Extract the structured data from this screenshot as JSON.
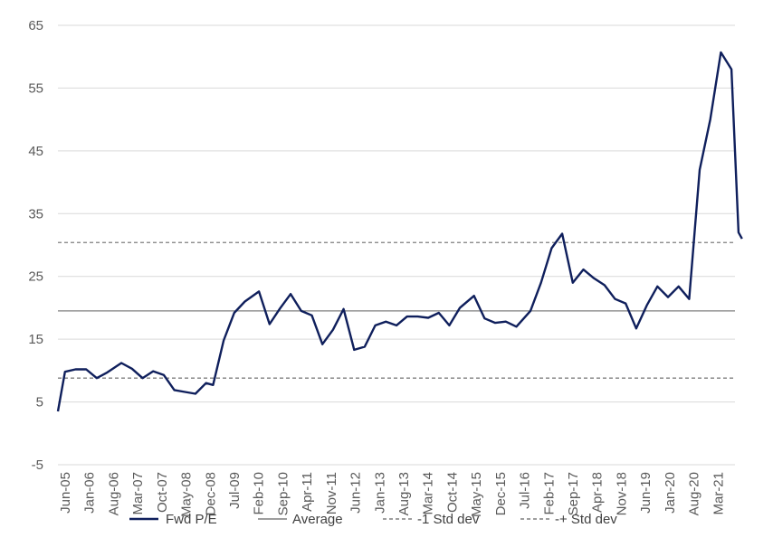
{
  "chart_data": {
    "type": "line",
    "title": "",
    "xlabel": "",
    "ylabel": "",
    "ylim": [
      -5,
      65
    ],
    "yticks": [
      65,
      55,
      45,
      35,
      25,
      15,
      5,
      -5
    ],
    "xtick_labels": [
      "Jun-05",
      "Jan-06",
      "Aug-06",
      "Mar-07",
      "Oct-07",
      "May-08",
      "Dec-08",
      "Jul-09",
      "Feb-10",
      "Sep-10",
      "Apr-11",
      "Nov-11",
      "Jun-12",
      "Jan-13",
      "Aug-13",
      "Mar-14",
      "Oct-14",
      "May-15",
      "Dec-15",
      "Jul-16",
      "Feb-17",
      "Sep-17",
      "Apr-18",
      "Nov-18",
      "Jun-19",
      "Jan-20",
      "Aug-20",
      "Mar-21"
    ],
    "grid": true,
    "legend_position": "bottom",
    "x_start": "2005-06",
    "x_end": "2021-06",
    "series": [
      {
        "name": "Fwd P/E",
        "color": "#0f1f5c",
        "style": "solid",
        "points": [
          [
            "2005-06",
            3.5
          ],
          [
            "2005-08",
            9.8
          ],
          [
            "2005-11",
            10.2
          ],
          [
            "2006-02",
            10.2
          ],
          [
            "2006-05",
            8.8
          ],
          [
            "2006-08",
            9.7
          ],
          [
            "2006-12",
            11.2
          ],
          [
            "2007-03",
            10.3
          ],
          [
            "2007-06",
            8.8
          ],
          [
            "2007-09",
            9.9
          ],
          [
            "2007-12",
            9.3
          ],
          [
            "2008-03",
            6.9
          ],
          [
            "2008-06",
            6.6
          ],
          [
            "2008-09",
            6.3
          ],
          [
            "2008-12",
            8.0
          ],
          [
            "2009-02",
            7.7
          ],
          [
            "2009-05",
            14.8
          ],
          [
            "2009-08",
            19.2
          ],
          [
            "2009-11",
            21.0
          ],
          [
            "2010-03",
            22.6
          ],
          [
            "2010-06",
            17.4
          ],
          [
            "2010-09",
            19.9
          ],
          [
            "2010-12",
            22.2
          ],
          [
            "2011-03",
            19.5
          ],
          [
            "2011-06",
            18.8
          ],
          [
            "2011-09",
            14.2
          ],
          [
            "2011-12",
            16.5
          ],
          [
            "2012-03",
            19.8
          ],
          [
            "2012-06",
            13.3
          ],
          [
            "2012-09",
            13.8
          ],
          [
            "2012-12",
            17.2
          ],
          [
            "2013-03",
            17.8
          ],
          [
            "2013-06",
            17.2
          ],
          [
            "2013-09",
            18.6
          ],
          [
            "2013-12",
            18.6
          ],
          [
            "2014-03",
            18.4
          ],
          [
            "2014-06",
            19.2
          ],
          [
            "2014-09",
            17.2
          ],
          [
            "2014-12",
            20.0
          ],
          [
            "2015-04",
            21.9
          ],
          [
            "2015-07",
            18.3
          ],
          [
            "2015-10",
            17.6
          ],
          [
            "2016-01",
            17.8
          ],
          [
            "2016-04",
            17.0
          ],
          [
            "2016-08",
            19.5
          ],
          [
            "2016-11",
            24.0
          ],
          [
            "2017-02",
            29.5
          ],
          [
            "2017-05",
            31.8
          ],
          [
            "2017-08",
            24.0
          ],
          [
            "2017-11",
            26.1
          ],
          [
            "2018-02",
            24.7
          ],
          [
            "2018-05",
            23.6
          ],
          [
            "2018-08",
            21.4
          ],
          [
            "2018-11",
            20.7
          ],
          [
            "2019-02",
            16.7
          ],
          [
            "2019-05",
            20.4
          ],
          [
            "2019-08",
            23.4
          ],
          [
            "2019-11",
            21.7
          ],
          [
            "2020-02",
            23.4
          ],
          [
            "2020-05",
            21.4
          ],
          [
            "2020-08",
            42.0
          ],
          [
            "2020-11",
            50.0
          ],
          [
            "2021-02",
            60.7
          ],
          [
            "2021-05",
            58.0
          ],
          [
            "2021-07",
            32.0
          ],
          [
            "2021-08",
            31.0
          ]
        ]
      },
      {
        "name": "Average",
        "color": "#7f7f7f",
        "style": "solid",
        "value": 19.5
      },
      {
        "name": "-1 Std dev",
        "color": "#7f7f7f",
        "style": "dashed",
        "value": 8.8
      },
      {
        "name": "-+ Std dev",
        "color": "#7f7f7f",
        "style": "dashed",
        "value": 30.4
      }
    ]
  }
}
